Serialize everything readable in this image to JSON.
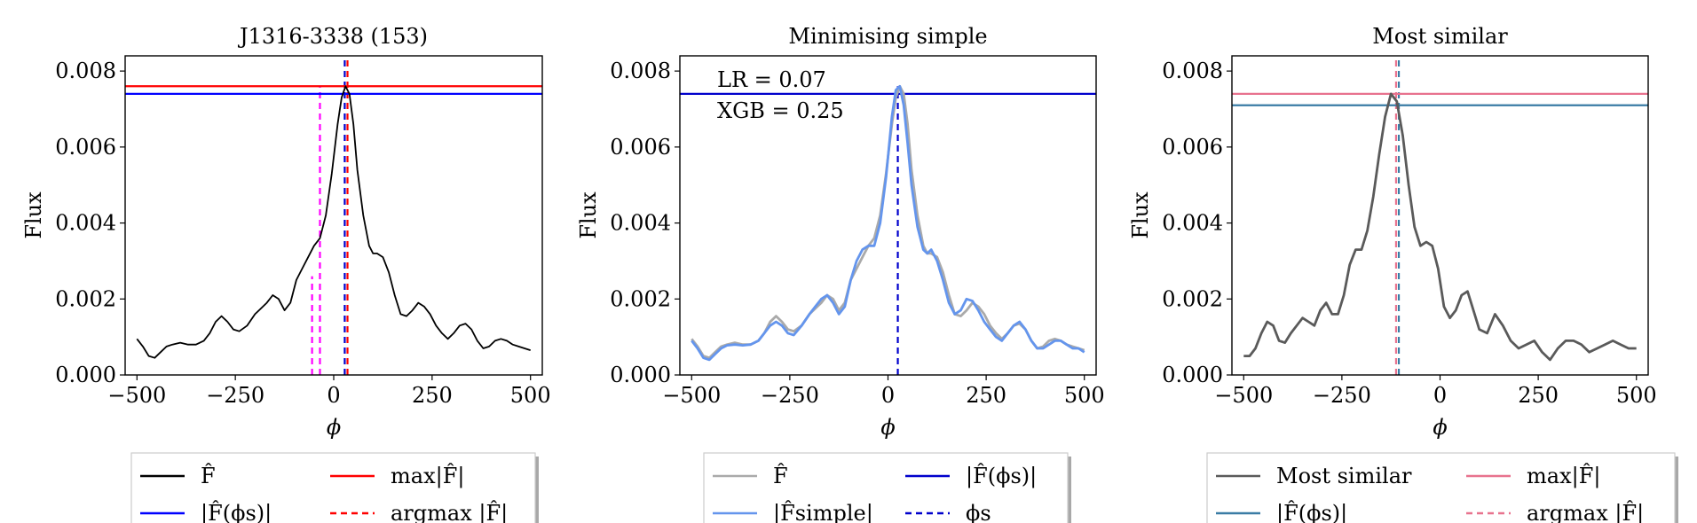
{
  "chart_data": [
    {
      "type": "line",
      "title": "J1316-3338 (153)",
      "xlabel": "ϕ",
      "ylabel": "Flux",
      "xlim": [
        -530,
        530
      ],
      "ylim": [
        0,
        0.0084
      ],
      "xticks": [
        -500,
        -250,
        0,
        250,
        500
      ],
      "xtick_labels": [
        "−500",
        "−250",
        "0",
        "250",
        "500"
      ],
      "yticks": [
        0,
        0.002,
        0.004,
        0.006,
        0.008
      ],
      "ytick_labels": [
        "0.000",
        "0.002",
        "0.004",
        "0.006",
        "0.008"
      ],
      "series": [
        {
          "name": "F̂",
          "color": "#000000",
          "x": [
            -500,
            -485,
            -470,
            -455,
            -440,
            -425,
            -410,
            -390,
            -370,
            -350,
            -330,
            -315,
            -300,
            -285,
            -270,
            -255,
            -240,
            -220,
            -200,
            -185,
            -170,
            -155,
            -140,
            -125,
            -110,
            -95,
            -80,
            -65,
            -50,
            -35,
            -20,
            -5,
            10,
            20,
            30,
            40,
            50,
            60,
            75,
            90,
            100,
            110,
            125,
            140,
            155,
            170,
            185,
            200,
            215,
            230,
            245,
            260,
            275,
            290,
            305,
            320,
            335,
            350,
            365,
            380,
            395,
            410,
            425,
            440,
            455,
            470,
            485,
            500
          ],
          "y": [
            0.00095,
            0.00075,
            0.0005,
            0.00045,
            0.0006,
            0.00075,
            0.0008,
            0.00085,
            0.0008,
            0.0008,
            0.0009,
            0.0011,
            0.0014,
            0.00155,
            0.0014,
            0.0012,
            0.00115,
            0.0013,
            0.0016,
            0.00175,
            0.0019,
            0.0021,
            0.002,
            0.0017,
            0.0019,
            0.0025,
            0.0028,
            0.0031,
            0.0034,
            0.0036,
            0.0042,
            0.0053,
            0.0066,
            0.0073,
            0.0076,
            0.0074,
            0.0066,
            0.0054,
            0.0042,
            0.0034,
            0.0032,
            0.0032,
            0.0031,
            0.0027,
            0.0021,
            0.0016,
            0.00155,
            0.0017,
            0.0019,
            0.0018,
            0.0016,
            0.0013,
            0.0011,
            0.00095,
            0.0011,
            0.0013,
            0.00135,
            0.0012,
            0.0009,
            0.0007,
            0.00075,
            0.0009,
            0.00095,
            0.0009,
            0.0008,
            0.00075,
            0.0007,
            0.00065
          ]
        }
      ],
      "hlines": [
        {
          "y": 0.0076,
          "color": "#ff0000",
          "style": "solid",
          "name": "max|F̂|"
        },
        {
          "y": 0.0074,
          "color": "#0000ff",
          "style": "solid",
          "name": "|F̂(ϕs)|"
        }
      ],
      "vlines": [
        {
          "x": 35,
          "y0": 0,
          "y1": 0.0084,
          "color": "#ff0000",
          "style": "dashed"
        },
        {
          "x": 28,
          "y0": 0,
          "y1": 0.0084,
          "color": "#0000cc",
          "style": "dashed"
        },
        {
          "x": -55,
          "y0": 0,
          "y1": 0.0026,
          "color": "#ff00ff",
          "style": "dashed"
        },
        {
          "x": -35,
          "y0": 0,
          "y1": 0.0076,
          "color": "#ff00ff",
          "style": "dashed"
        }
      ],
      "annotations": [],
      "legend": {
        "position": "below",
        "entries": [
          {
            "label": "F̂",
            "color": "#000000",
            "style": "solid"
          },
          {
            "label": "max|F̂|",
            "color": "#ff0000",
            "style": "solid"
          },
          {
            "label": "|F̂(ϕs)|",
            "color": "#0000ff",
            "style": "solid"
          },
          {
            "label": "argmax |F̂|",
            "color": "#ff0000",
            "style": "dashed"
          }
        ]
      }
    },
    {
      "type": "line",
      "title": "Minimising simple",
      "xlabel": "ϕ",
      "ylabel": "Flux",
      "xlim": [
        -530,
        530
      ],
      "ylim": [
        0,
        0.0084
      ],
      "xticks": [
        -500,
        -250,
        0,
        250,
        500
      ],
      "xtick_labels": [
        "−500",
        "−250",
        "0",
        "250",
        "500"
      ],
      "yticks": [
        0,
        0.002,
        0.004,
        0.006,
        0.008
      ],
      "ytick_labels": [
        "0.000",
        "0.002",
        "0.004",
        "0.006",
        "0.008"
      ],
      "series": [
        {
          "name": "F̂",
          "color": "#aaaaaa",
          "x": [
            -500,
            -485,
            -470,
            -455,
            -440,
            -425,
            -410,
            -390,
            -370,
            -350,
            -330,
            -315,
            -300,
            -285,
            -270,
            -255,
            -240,
            -220,
            -200,
            -185,
            -170,
            -155,
            -140,
            -125,
            -110,
            -95,
            -80,
            -65,
            -50,
            -35,
            -20,
            -5,
            10,
            20,
            30,
            40,
            50,
            60,
            75,
            90,
            100,
            110,
            125,
            140,
            155,
            170,
            185,
            200,
            215,
            230,
            245,
            260,
            275,
            290,
            305,
            320,
            335,
            350,
            365,
            380,
            395,
            410,
            425,
            440,
            455,
            470,
            485,
            500
          ],
          "y": [
            0.00095,
            0.00075,
            0.0005,
            0.00045,
            0.0006,
            0.00075,
            0.0008,
            0.00085,
            0.0008,
            0.0008,
            0.0009,
            0.0011,
            0.0014,
            0.00155,
            0.0014,
            0.0012,
            0.00115,
            0.0013,
            0.0016,
            0.00175,
            0.0019,
            0.0021,
            0.002,
            0.0017,
            0.0019,
            0.0025,
            0.0028,
            0.0031,
            0.0034,
            0.0036,
            0.0042,
            0.0053,
            0.0066,
            0.0073,
            0.0076,
            0.0074,
            0.0066,
            0.0054,
            0.0042,
            0.0034,
            0.0032,
            0.0032,
            0.0031,
            0.0027,
            0.0021,
            0.0016,
            0.00155,
            0.0017,
            0.0019,
            0.0018,
            0.0016,
            0.0013,
            0.0011,
            0.00095,
            0.0011,
            0.0013,
            0.00135,
            0.0012,
            0.0009,
            0.0007,
            0.00075,
            0.0009,
            0.00095,
            0.0009,
            0.0008,
            0.00075,
            0.0007,
            0.00065
          ]
        },
        {
          "name": "|F̂simple|",
          "color": "#6495ed",
          "x": [
            -500,
            -485,
            -470,
            -455,
            -440,
            -425,
            -410,
            -390,
            -370,
            -350,
            -330,
            -315,
            -300,
            -285,
            -270,
            -255,
            -240,
            -220,
            -200,
            -185,
            -170,
            -155,
            -140,
            -125,
            -110,
            -95,
            -80,
            -65,
            -50,
            -35,
            -20,
            -5,
            10,
            20,
            30,
            40,
            50,
            60,
            75,
            90,
            100,
            110,
            125,
            140,
            155,
            170,
            185,
            200,
            215,
            230,
            245,
            260,
            275,
            290,
            305,
            320,
            335,
            350,
            365,
            380,
            395,
            410,
            425,
            440,
            455,
            470,
            485,
            500
          ],
          "y": [
            0.0009,
            0.0007,
            0.00045,
            0.0004,
            0.00055,
            0.0007,
            0.00078,
            0.0008,
            0.00078,
            0.0008,
            0.0009,
            0.0011,
            0.0013,
            0.0014,
            0.0013,
            0.0011,
            0.00105,
            0.0013,
            0.0016,
            0.0018,
            0.002,
            0.0021,
            0.0019,
            0.0016,
            0.0018,
            0.0025,
            0.003,
            0.0033,
            0.0034,
            0.0034,
            0.004,
            0.0052,
            0.0068,
            0.0075,
            0.0076,
            0.0071,
            0.0061,
            0.005,
            0.0039,
            0.0033,
            0.0032,
            0.0033,
            0.003,
            0.0025,
            0.0019,
            0.0016,
            0.0017,
            0.002,
            0.00195,
            0.0017,
            0.0014,
            0.0012,
            0.001,
            0.0009,
            0.0011,
            0.0013,
            0.0014,
            0.0012,
            0.0009,
            0.0007,
            0.0007,
            0.0008,
            0.0009,
            0.0009,
            0.0008,
            0.0007,
            0.0007,
            0.0006
          ]
        }
      ],
      "hlines": [
        {
          "y": 0.0074,
          "color": "#0000cc",
          "style": "solid",
          "name": "|F̂(ϕs)|"
        }
      ],
      "vlines": [
        {
          "x": 25,
          "y0": 0,
          "y1": 0.0076,
          "color": "#0000cc",
          "style": "dashed"
        }
      ],
      "annotations": [
        "LR = 0.07",
        "XGB = 0.25"
      ],
      "legend": {
        "position": "below",
        "entries": [
          {
            "label": "F̂",
            "color": "#aaaaaa",
            "style": "solid"
          },
          {
            "label": "|F̂(ϕs)|",
            "color": "#0000cc",
            "style": "solid"
          },
          {
            "label": "|F̂simple|",
            "color": "#6495ed",
            "style": "solid"
          },
          {
            "label": "ϕs",
            "color": "#0000cc",
            "style": "dashed"
          }
        ]
      }
    },
    {
      "type": "line",
      "title": "Most similar",
      "xlabel": "ϕ",
      "ylabel": "Flux",
      "xlim": [
        -530,
        530
      ],
      "ylim": [
        0,
        0.0084
      ],
      "xticks": [
        -500,
        -250,
        0,
        250,
        500
      ],
      "xtick_labels": [
        "−500",
        "−250",
        "0",
        "250",
        "500"
      ],
      "yticks": [
        0,
        0.002,
        0.004,
        0.006,
        0.008
      ],
      "ytick_labels": [
        "0.000",
        "0.002",
        "0.004",
        "0.006",
        "0.008"
      ],
      "series": [
        {
          "name": "Most similar",
          "color": "#5a5a5a",
          "x": [
            -500,
            -485,
            -470,
            -455,
            -440,
            -425,
            -410,
            -395,
            -380,
            -365,
            -350,
            -335,
            -320,
            -305,
            -290,
            -275,
            -260,
            -245,
            -230,
            -215,
            -200,
            -185,
            -170,
            -155,
            -140,
            -125,
            -110,
            -95,
            -80,
            -65,
            -50,
            -35,
            -20,
            -5,
            10,
            25,
            40,
            55,
            70,
            85,
            100,
            120,
            140,
            160,
            180,
            200,
            220,
            240,
            260,
            280,
            300,
            320,
            340,
            360,
            380,
            400,
            420,
            440,
            460,
            480,
            500
          ],
          "y": [
            0.0005,
            0.0005,
            0.0007,
            0.0011,
            0.0014,
            0.0013,
            0.0009,
            0.00085,
            0.0011,
            0.0013,
            0.0015,
            0.0014,
            0.0013,
            0.0017,
            0.0019,
            0.0016,
            0.0016,
            0.0021,
            0.0029,
            0.0033,
            0.0033,
            0.0038,
            0.0047,
            0.0058,
            0.0068,
            0.0074,
            0.0072,
            0.0063,
            0.005,
            0.0039,
            0.0034,
            0.0035,
            0.0034,
            0.0028,
            0.0018,
            0.0015,
            0.0017,
            0.0021,
            0.0022,
            0.0017,
            0.0012,
            0.0011,
            0.0016,
            0.0013,
            0.0009,
            0.0007,
            0.0008,
            0.0009,
            0.0006,
            0.0004,
            0.0007,
            0.0009,
            0.0009,
            0.0008,
            0.0006,
            0.0007,
            0.0008,
            0.0009,
            0.0008,
            0.0007,
            0.0007
          ]
        }
      ],
      "hlines": [
        {
          "y": 0.0074,
          "color": "#e8728e",
          "style": "solid",
          "name": "max|F̂|"
        },
        {
          "y": 0.0071,
          "color": "#3a7ca5",
          "style": "solid",
          "name": "|F̂(ϕs)|"
        }
      ],
      "vlines": [
        {
          "x": -112,
          "y0": 0,
          "y1": 0.0084,
          "color": "#e8728e",
          "style": "dashed"
        },
        {
          "x": -105,
          "y0": 0,
          "y1": 0.0084,
          "color": "#3a7ca5",
          "style": "dashed"
        }
      ],
      "annotations": [],
      "legend": {
        "position": "below",
        "entries": [
          {
            "label": "Most similar",
            "color": "#5a5a5a",
            "style": "solid"
          },
          {
            "label": "max|F̂|",
            "color": "#e8728e",
            "style": "solid"
          },
          {
            "label": "|F̂(ϕs)|",
            "color": "#3a7ca5",
            "style": "solid"
          },
          {
            "label": "argmax |F̂|",
            "color": "#e8728e",
            "style": "dashed"
          }
        ]
      }
    }
  ]
}
